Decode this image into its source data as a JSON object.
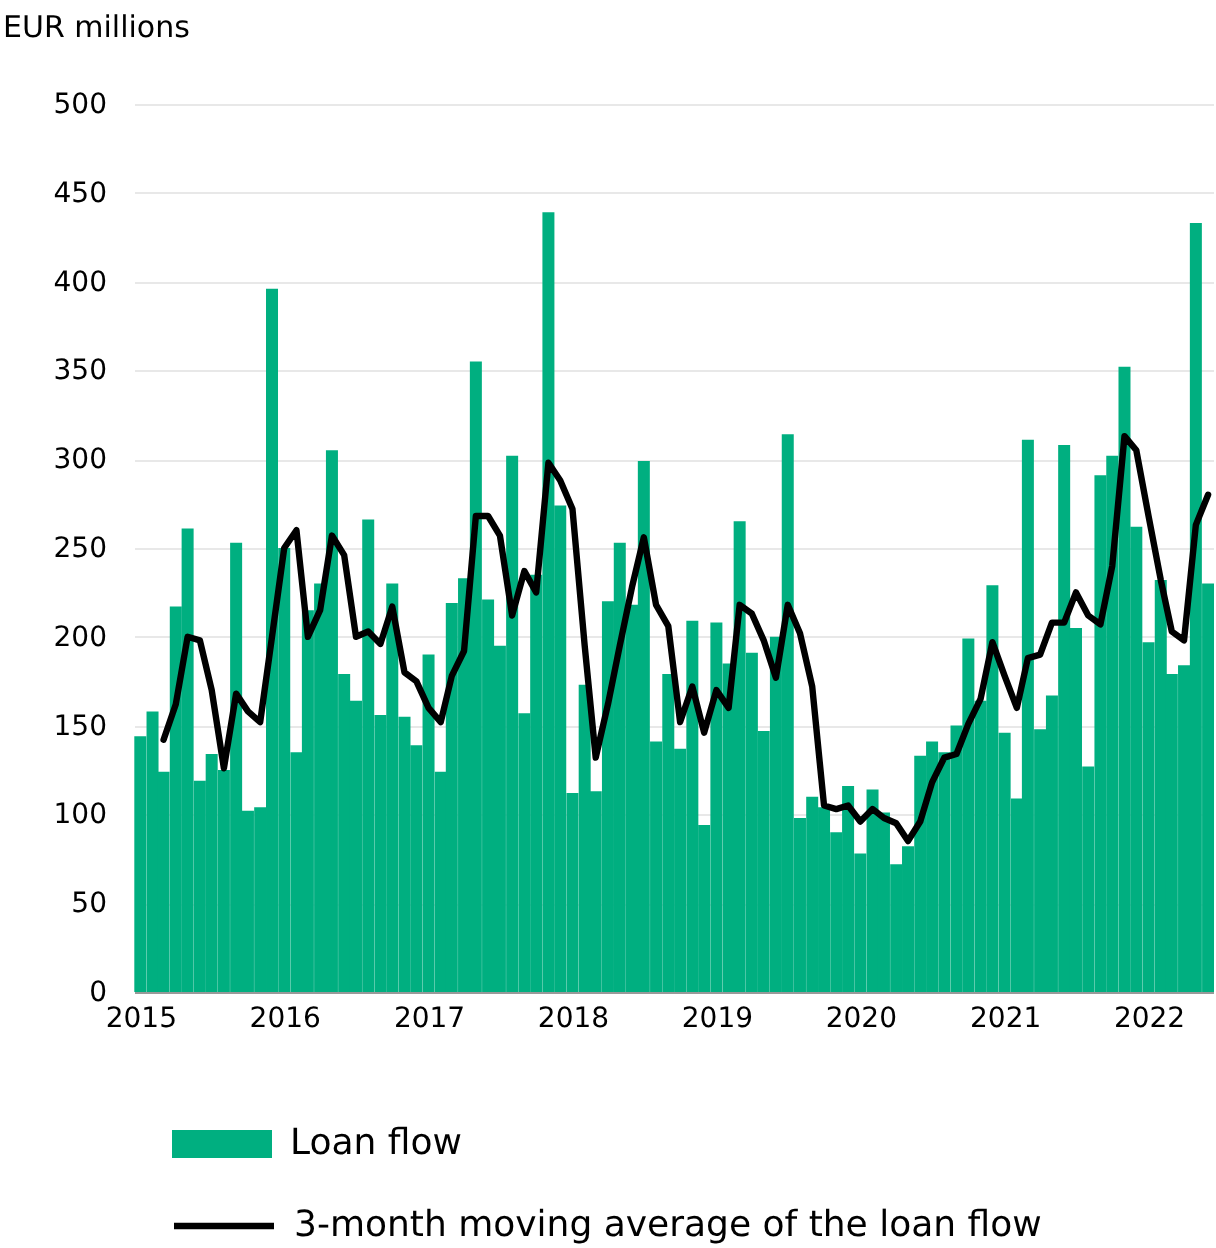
{
  "chart_data": {
    "type": "bar",
    "ylabel": "EUR millions",
    "x": [
      "2015-01",
      "2015-02",
      "2015-03",
      "2015-04",
      "2015-05",
      "2015-06",
      "2015-07",
      "2015-08",
      "2015-09",
      "2015-10",
      "2015-11",
      "2015-12",
      "2016-01",
      "2016-02",
      "2016-03",
      "2016-04",
      "2016-05",
      "2016-06",
      "2016-07",
      "2016-08",
      "2016-09",
      "2016-10",
      "2016-11",
      "2016-12",
      "2017-01",
      "2017-02",
      "2017-03",
      "2017-04",
      "2017-05",
      "2017-06",
      "2017-07",
      "2017-08",
      "2017-09",
      "2017-10",
      "2017-11",
      "2017-12",
      "2018-01",
      "2018-02",
      "2018-03",
      "2018-04",
      "2018-05",
      "2018-06",
      "2018-07",
      "2018-08",
      "2018-09",
      "2018-10",
      "2018-11",
      "2018-12",
      "2019-01",
      "2019-02",
      "2019-03",
      "2019-04",
      "2019-05",
      "2019-06",
      "2019-07",
      "2019-08",
      "2019-09",
      "2019-10",
      "2019-11",
      "2019-12",
      "2020-01",
      "2020-02",
      "2020-03",
      "2020-04",
      "2020-05",
      "2020-06",
      "2020-07",
      "2020-08",
      "2020-09",
      "2020-10",
      "2020-11",
      "2020-12",
      "2021-01",
      "2021-02",
      "2021-03",
      "2021-04",
      "2021-05",
      "2021-06",
      "2021-07",
      "2021-08",
      "2021-09",
      "2021-10",
      "2021-11",
      "2021-12",
      "2022-01",
      "2022-02",
      "2022-03",
      "2022-04",
      "2022-05",
      "2022-06"
    ],
    "series": [
      {
        "name": "Loan flow",
        "color": "#00af80",
        "values": [
          144,
          158,
          124,
          217,
          261,
          119,
          134,
          125,
          253,
          102,
          104,
          396,
          250,
          135,
          215,
          230,
          305,
          179,
          164,
          266,
          156,
          230,
          155,
          139,
          190,
          124,
          219,
          233,
          355,
          221,
          195,
          302,
          157,
          235,
          439,
          274,
          112,
          173,
          113,
          220,
          253,
          218,
          299,
          141,
          179,
          137,
          209,
          94,
          208,
          185,
          265,
          191,
          147,
          200,
          314,
          98,
          110,
          104,
          90,
          116,
          78,
          114,
          101,
          72,
          82,
          133,
          141,
          135,
          150,
          199,
          164,
          229,
          146,
          109,
          311,
          148,
          167,
          308,
          205,
          127,
          291,
          302,
          352,
          262,
          197,
          232,
          179,
          184,
          433,
          230
        ]
      },
      {
        "name": "3-month moving average of the loan flow",
        "type": "line",
        "color": "#000000",
        "x": [
          "2015-03",
          "2015-04",
          "2015-05",
          "2015-06",
          "2015-07",
          "2015-08",
          "2015-09",
          "2015-10",
          "2015-11",
          "2015-12",
          "2016-01",
          "2016-02",
          "2016-03",
          "2016-04",
          "2016-05",
          "2016-06",
          "2016-07",
          "2016-08",
          "2016-09",
          "2016-10",
          "2016-11",
          "2016-12",
          "2017-01",
          "2017-02",
          "2017-03",
          "2017-04",
          "2017-05",
          "2017-06",
          "2017-07",
          "2017-08",
          "2017-09",
          "2017-10",
          "2017-11",
          "2017-12",
          "2018-01",
          "2018-02",
          "2018-03",
          "2018-04",
          "2018-05",
          "2018-06",
          "2018-07",
          "2018-08",
          "2018-09",
          "2018-10",
          "2018-11",
          "2018-12",
          "2019-01",
          "2019-02",
          "2019-03",
          "2019-04",
          "2019-05",
          "2019-06",
          "2019-07",
          "2019-08",
          "2019-09",
          "2019-10",
          "2019-11",
          "2019-12",
          "2020-01",
          "2020-02",
          "2020-03",
          "2020-04",
          "2020-05",
          "2020-06",
          "2020-07",
          "2020-08",
          "2020-09",
          "2020-10",
          "2020-11",
          "2020-12",
          "2021-01",
          "2021-02",
          "2021-03",
          "2021-04",
          "2021-05",
          "2021-06",
          "2021-07",
          "2021-08",
          "2021-09",
          "2021-10",
          "2021-11",
          "2021-12",
          "2022-01",
          "2022-02",
          "2022-03",
          "2022-04",
          "2022-05",
          "2022-06"
        ],
        "values": [
          142,
          162,
          200,
          198,
          170,
          126,
          168,
          158,
          152,
          200,
          250,
          260,
          200,
          215,
          257,
          246,
          200,
          203,
          196,
          217,
          180,
          175,
          160,
          152,
          178,
          192,
          268,
          268,
          257,
          212,
          237,
          225,
          298,
          288,
          272,
          195,
          132,
          162,
          195,
          228,
          256,
          218,
          206,
          152,
          172,
          146,
          170,
          160,
          218,
          213,
          198,
          177,
          218,
          202,
          172,
          105,
          103,
          105,
          96,
          103,
          98,
          95,
          85,
          96,
          118,
          132,
          134,
          151,
          165,
          197,
          178,
          160,
          188,
          190,
          208,
          208,
          225,
          212,
          207,
          240,
          313,
          305,
          268,
          232,
          203,
          198,
          263,
          280
        ]
      }
    ],
    "xlim": [
      "2014-12-16",
      "2022-06-16"
    ],
    "xticks": [
      "2015",
      "2016",
      "2017",
      "2018",
      "2019",
      "2020",
      "2021",
      "2022"
    ],
    "ylim": [
      0,
      500
    ],
    "yticks": [
      0,
      50,
      100,
      150,
      200,
      250,
      300,
      350,
      400,
      450,
      500
    ],
    "grid": "y",
    "legend": "bottom"
  }
}
